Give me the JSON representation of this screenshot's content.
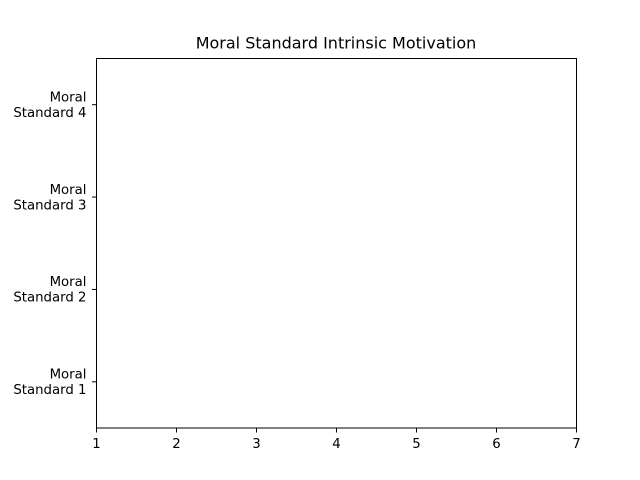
{
  "chart_data": {
    "type": "bar",
    "orientation": "horizontal",
    "title": "Moral Standard Intrinsic Motivation",
    "xlabel": "",
    "ylabel": "",
    "xlim": [
      1,
      7
    ],
    "x_ticks": [
      "1",
      "2",
      "3",
      "4",
      "5",
      "6",
      "7"
    ],
    "categories": [
      [
        "Moral",
        "Standard 1"
      ],
      [
        "Moral",
        "Standard 2"
      ],
      [
        "Moral",
        "Standard 3"
      ],
      [
        "Moral",
        "Standard 4"
      ]
    ],
    "values": [
      null,
      null,
      null,
      null
    ],
    "grid": false,
    "legend": "none",
    "colors": {
      "axis": "#000000",
      "background": "#ffffff"
    }
  }
}
